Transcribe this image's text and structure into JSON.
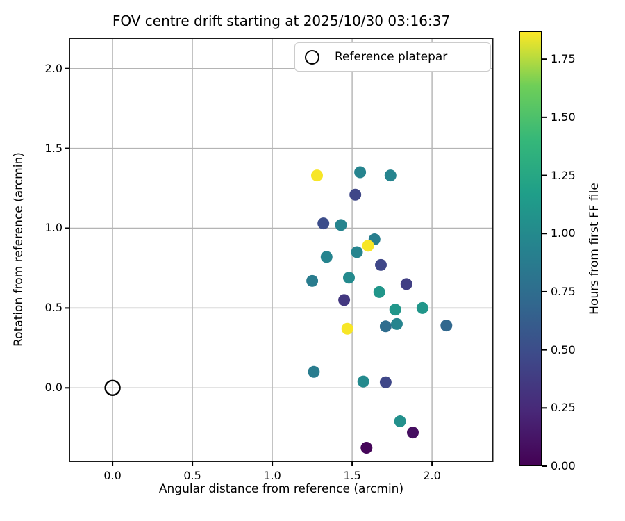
{
  "figure": {
    "background": "#ffffff",
    "spine_color": "#1a1a1a",
    "grid_color": "#b4b4b4"
  },
  "chart_data": {
    "type": "scatter",
    "title": "FOV centre drift starting at 2025/10/30 03:16:37",
    "xlabel": "Angular distance from reference (arcmin)",
    "ylabel": "Rotation from reference (arcmin)",
    "xlim": [
      -0.27,
      2.38
    ],
    "ylim": [
      -0.46,
      2.19
    ],
    "x_ticks": [
      0.0,
      0.5,
      1.0,
      1.5,
      2.0
    ],
    "x_tick_labels": [
      "0.0",
      "0.5",
      "1.0",
      "1.5",
      "2.0"
    ],
    "y_ticks": [
      0.0,
      0.5,
      1.0,
      1.5,
      2.0
    ],
    "y_tick_labels": [
      "0.0",
      "0.5",
      "1.0",
      "1.5",
      "2.0"
    ],
    "grid": true,
    "legend": {
      "label": "Reference platepar",
      "position": "upper right",
      "marker": "open-circle"
    },
    "reference_point": {
      "x": 0.0,
      "y": 0.0
    },
    "points": [
      {
        "x": 1.28,
        "y": 1.33,
        "hours": 1.86
      },
      {
        "x": 1.55,
        "y": 1.35,
        "hours": 0.95
      },
      {
        "x": 1.74,
        "y": 1.33,
        "hours": 0.95
      },
      {
        "x": 1.52,
        "y": 1.21,
        "hours": 0.45
      },
      {
        "x": 1.32,
        "y": 1.03,
        "hours": 0.5
      },
      {
        "x": 1.43,
        "y": 1.02,
        "hours": 0.95
      },
      {
        "x": 1.64,
        "y": 0.93,
        "hours": 0.9
      },
      {
        "x": 1.6,
        "y": 0.89,
        "hours": 1.86
      },
      {
        "x": 1.53,
        "y": 0.85,
        "hours": 0.95
      },
      {
        "x": 1.34,
        "y": 0.82,
        "hours": 0.95
      },
      {
        "x": 1.68,
        "y": 0.77,
        "hours": 0.45
      },
      {
        "x": 1.48,
        "y": 0.69,
        "hours": 1.0
      },
      {
        "x": 1.25,
        "y": 0.67,
        "hours": 0.88
      },
      {
        "x": 1.84,
        "y": 0.65,
        "hours": 0.4
      },
      {
        "x": 1.67,
        "y": 0.6,
        "hours": 1.1
      },
      {
        "x": 1.45,
        "y": 0.55,
        "hours": 0.35
      },
      {
        "x": 1.77,
        "y": 0.49,
        "hours": 1.1
      },
      {
        "x": 1.94,
        "y": 0.5,
        "hours": 1.1
      },
      {
        "x": 1.71,
        "y": 0.385,
        "hours": 0.75
      },
      {
        "x": 1.78,
        "y": 0.4,
        "hours": 0.95
      },
      {
        "x": 2.09,
        "y": 0.39,
        "hours": 0.7
      },
      {
        "x": 1.47,
        "y": 0.37,
        "hours": 1.86
      },
      {
        "x": 1.26,
        "y": 0.1,
        "hours": 0.88
      },
      {
        "x": 1.57,
        "y": 0.04,
        "hours": 1.0
      },
      {
        "x": 1.71,
        "y": 0.035,
        "hours": 0.45
      },
      {
        "x": 1.8,
        "y": -0.21,
        "hours": 1.05
      },
      {
        "x": 1.88,
        "y": -0.28,
        "hours": 0.08
      },
      {
        "x": 1.59,
        "y": -0.375,
        "hours": 0.03
      }
    ],
    "colorbar": {
      "label": "Hours from first FF file",
      "vmin": 0.0,
      "vmax": 1.87,
      "ticks": [
        0.0,
        0.25,
        0.5,
        0.75,
        1.0,
        1.25,
        1.5,
        1.75
      ],
      "tick_labels": [
        "0.00",
        "0.25",
        "0.50",
        "0.75",
        "1.00",
        "1.25",
        "1.50",
        "1.75"
      ],
      "colormap": "viridis",
      "viridis_stops": [
        "#440154",
        "#482878",
        "#3e4989",
        "#31688e",
        "#26828e",
        "#1f9e89",
        "#35b779",
        "#6ece58",
        "#fde725"
      ]
    }
  }
}
